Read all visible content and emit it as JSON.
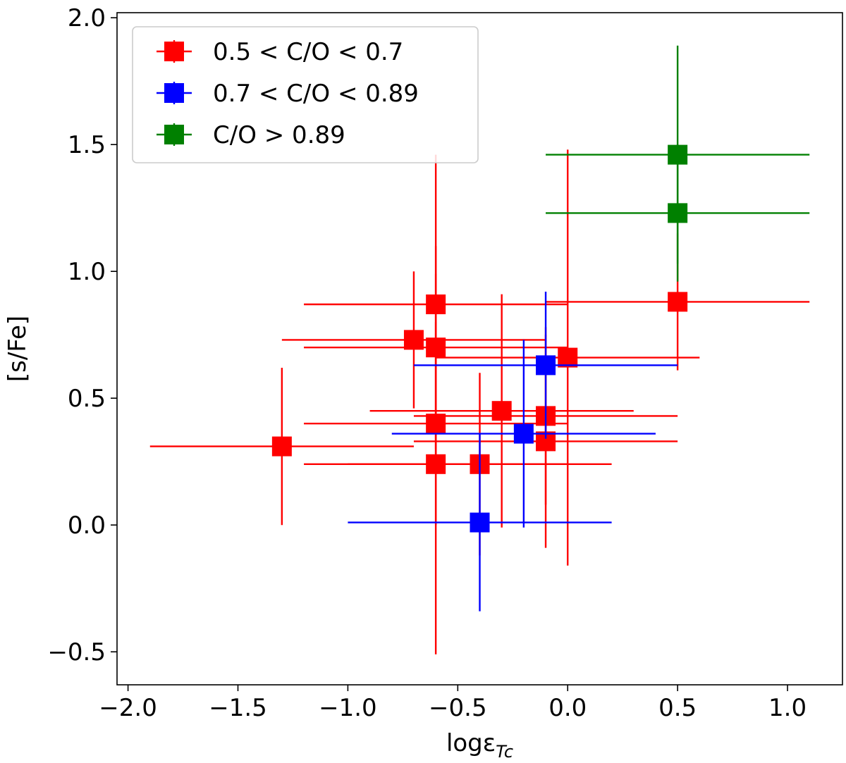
{
  "chart_data": {
    "type": "scatter",
    "title": "",
    "xlabel": "logε",
    "xlabel_subscript": "Tc",
    "ylabel": "[s/Fe]",
    "xlim": [
      -2.05,
      1.25
    ],
    "ylim": [
      -0.63,
      2.02
    ],
    "x_ticks": [
      -2.0,
      -1.5,
      -1.0,
      -0.5,
      0.0,
      0.5,
      1.0
    ],
    "x_tick_labels": [
      "−2.0",
      "−1.5",
      "−1.0",
      "−0.5",
      "0.0",
      "0.5",
      "1.0"
    ],
    "y_ticks": [
      -0.5,
      0.0,
      0.5,
      1.0,
      1.5,
      2.0
    ],
    "y_tick_labels": [
      "−0.5",
      "0.0",
      "0.5",
      "1.0",
      "1.5",
      "2.0"
    ],
    "grid": false,
    "legend_position": "top-left",
    "series": [
      {
        "name": "0.5 < C/O < 0.7",
        "color": "#ff0000",
        "points": [
          {
            "x": -1.3,
            "y": 0.31,
            "xerr": 0.6,
            "yerr": 0.31
          },
          {
            "x": -0.7,
            "y": 0.73,
            "xerr": 0.6,
            "yerr": 0.27
          },
          {
            "x": -0.6,
            "y": 0.87,
            "xerr": 0.6,
            "yerr": 0.59
          },
          {
            "x": -0.6,
            "y": 0.7,
            "xerr": 0.6,
            "yerr": 0.4
          },
          {
            "x": -0.6,
            "y": 0.4,
            "xerr": 0.6,
            "yerr": 0.4
          },
          {
            "x": -0.6,
            "y": 0.24,
            "xerr": 0.6,
            "yerr": 0.75
          },
          {
            "x": -0.4,
            "y": 0.24,
            "xerr": 0.6,
            "yerr": 0.36
          },
          {
            "x": -0.3,
            "y": 0.45,
            "xerr": 0.6,
            "yerr": 0.46
          },
          {
            "x": -0.1,
            "y": 0.43,
            "xerr": 0.6,
            "yerr": 0.35
          },
          {
            "x": -0.1,
            "y": 0.33,
            "xerr": 0.6,
            "yerr": 0.42
          },
          {
            "x": 0.0,
            "y": 0.66,
            "xerr": 0.6,
            "yerr": 0.82
          },
          {
            "x": 0.5,
            "y": 0.88,
            "xerr": 0.6,
            "yerr": 0.27
          }
        ]
      },
      {
        "name": "0.7 < C/O < 0.89",
        "color": "#0000ff",
        "points": [
          {
            "x": -0.1,
            "y": 0.63,
            "xerr": 0.6,
            "yerr": 0.29
          },
          {
            "x": -0.2,
            "y": 0.36,
            "xerr": 0.6,
            "yerr": 0.37
          },
          {
            "x": -0.4,
            "y": 0.01,
            "xerr": 0.6,
            "yerr": 0.35
          }
        ]
      },
      {
        "name": "C/O > 0.89",
        "color": "#008000",
        "points": [
          {
            "x": 0.5,
            "y": 1.46,
            "xerr": 0.6,
            "yerr": 0.43
          },
          {
            "x": 0.5,
            "y": 1.23,
            "xerr": 0.6,
            "yerr": 0.27
          }
        ]
      }
    ]
  }
}
